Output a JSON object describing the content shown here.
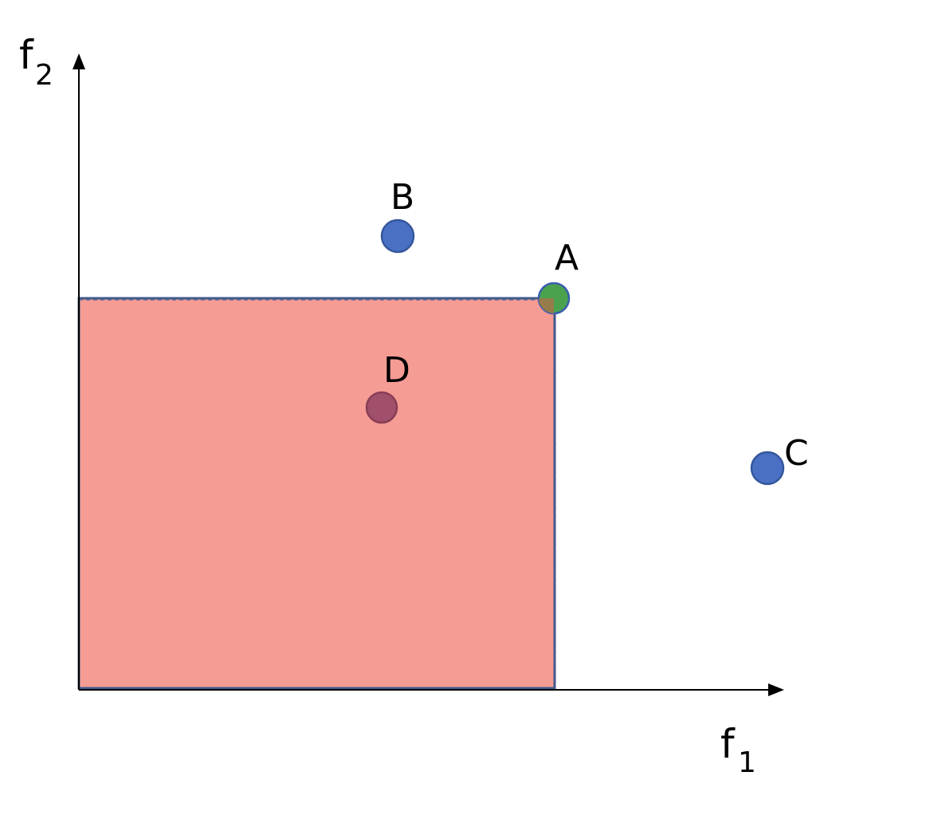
{
  "axes": {
    "x": {
      "base": "f",
      "sub": "1"
    },
    "y": {
      "base": "f",
      "sub": "2"
    }
  },
  "region": {
    "fill": "#f59c94",
    "stroke": "#3f5a8a"
  },
  "points": [
    {
      "id": "A",
      "label": "A",
      "fill": "#4aa24f",
      "stroke": "#3a5eb0"
    },
    {
      "id": "B",
      "label": "B",
      "fill": "#4a70c4",
      "stroke": "#35579c"
    },
    {
      "id": "C",
      "label": "C",
      "fill": "#4a70c4",
      "stroke": "#35579c"
    },
    {
      "id": "D",
      "label": "D",
      "fill": "#a0506a",
      "stroke": "#8a3d55"
    }
  ]
}
